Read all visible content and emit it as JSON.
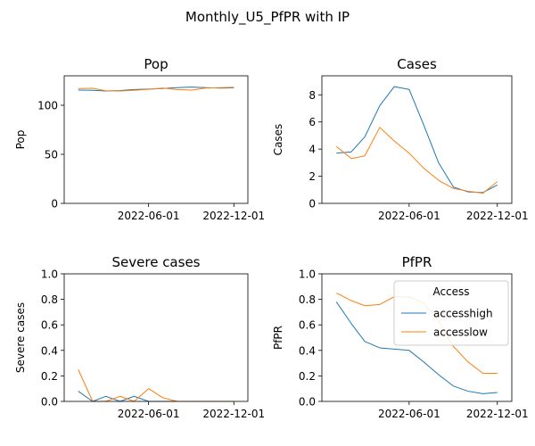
{
  "figure": {
    "title": "Monthly_U5_PfPR with IP"
  },
  "colors": {
    "accesshigh": "#1f77b4",
    "accesslow": "#ff7f0e"
  },
  "chart_data": [
    {
      "type": "line",
      "title": "Pop",
      "xlabel": "",
      "ylabel": "Pop",
      "x": [
        "2022-01-01",
        "2022-02-01",
        "2022-03-01",
        "2022-04-01",
        "2022-05-01",
        "2022-06-01",
        "2022-07-01",
        "2022-08-01",
        "2022-09-01",
        "2022-10-01",
        "2022-11-01",
        "2022-12-01"
      ],
      "xticks": [
        "2022-06-01",
        "2022-12-01"
      ],
      "ylim": [
        0,
        130
      ],
      "yticks": [
        0,
        50,
        100
      ],
      "series": [
        {
          "key": "accesshigh",
          "values": [
            115.5,
            115.2,
            114.5,
            115.0,
            116.0,
            116.5,
            117.0,
            118.0,
            118.5,
            118.0,
            117.5,
            117.8
          ]
        },
        {
          "key": "accesslow",
          "values": [
            117.0,
            117.3,
            114.8,
            114.5,
            115.2,
            116.2,
            117.5,
            116.0,
            115.5,
            117.5,
            118.0,
            118.3
          ]
        }
      ]
    },
    {
      "type": "line",
      "title": "Cases",
      "xlabel": "",
      "ylabel": "Cases",
      "x": [
        "2022-01-01",
        "2022-02-01",
        "2022-03-01",
        "2022-04-01",
        "2022-05-01",
        "2022-06-01",
        "2022-07-01",
        "2022-08-01",
        "2022-09-01",
        "2022-10-01",
        "2022-11-01",
        "2022-12-01"
      ],
      "xticks": [
        "2022-06-01",
        "2022-12-01"
      ],
      "ylim": [
        0,
        9.4
      ],
      "yticks": [
        0,
        2,
        4,
        6,
        8
      ],
      "series": [
        {
          "key": "accesshigh",
          "values": [
            3.7,
            3.8,
            4.9,
            7.2,
            8.6,
            8.4,
            5.8,
            3.0,
            1.2,
            0.85,
            0.8,
            1.35
          ]
        },
        {
          "key": "accesslow",
          "values": [
            4.2,
            3.3,
            3.5,
            5.6,
            4.6,
            3.7,
            2.6,
            1.7,
            1.1,
            0.9,
            0.75,
            1.6
          ]
        }
      ]
    },
    {
      "type": "line",
      "title": "Severe cases",
      "xlabel": "",
      "ylabel": "Severe cases",
      "x": [
        "2022-01-01",
        "2022-02-01",
        "2022-03-01",
        "2022-04-01",
        "2022-05-01",
        "2022-06-01",
        "2022-07-01",
        "2022-08-01",
        "2022-09-01",
        "2022-10-01",
        "2022-11-01",
        "2022-12-01"
      ],
      "xticks": [
        "2022-06-01",
        "2022-12-01"
      ],
      "ylim": [
        0,
        1.0
      ],
      "yticks": [
        0.0,
        0.2,
        0.4,
        0.6,
        0.8,
        1.0
      ],
      "series": [
        {
          "key": "accesshigh",
          "values": [
            0.08,
            0.0,
            0.04,
            0.0,
            0.04,
            0.0,
            0.0,
            0.0,
            0.0,
            0.0,
            0.0,
            0.0
          ]
        },
        {
          "key": "accesslow",
          "values": [
            0.25,
            0.0,
            0.0,
            0.04,
            0.0,
            0.1,
            0.03,
            0.0,
            0.0,
            0.0,
            0.0,
            0.0
          ]
        }
      ]
    },
    {
      "type": "line",
      "title": "PfPR",
      "xlabel": "",
      "ylabel": "PfPR",
      "x": [
        "2022-01-01",
        "2022-02-01",
        "2022-03-01",
        "2022-04-01",
        "2022-05-01",
        "2022-06-01",
        "2022-07-01",
        "2022-08-01",
        "2022-09-01",
        "2022-10-01",
        "2022-11-01",
        "2022-12-01"
      ],
      "xticks": [
        "2022-06-01",
        "2022-12-01"
      ],
      "ylim": [
        0,
        1.0
      ],
      "yticks": [
        0.0,
        0.2,
        0.4,
        0.6,
        0.8,
        1.0
      ],
      "legend": {
        "title": "Access",
        "placement": "upper right",
        "entries": [
          "accesshigh",
          "accesslow"
        ]
      },
      "series": [
        {
          "key": "accesshigh",
          "name": "accesshigh",
          "values": [
            0.78,
            0.61,
            0.47,
            0.42,
            0.41,
            0.4,
            0.31,
            0.21,
            0.12,
            0.08,
            0.06,
            0.07
          ]
        },
        {
          "key": "accesslow",
          "name": "accesslow",
          "values": [
            0.85,
            0.79,
            0.75,
            0.76,
            0.82,
            0.82,
            0.77,
            0.63,
            0.43,
            0.31,
            0.22,
            0.22
          ]
        }
      ]
    }
  ]
}
